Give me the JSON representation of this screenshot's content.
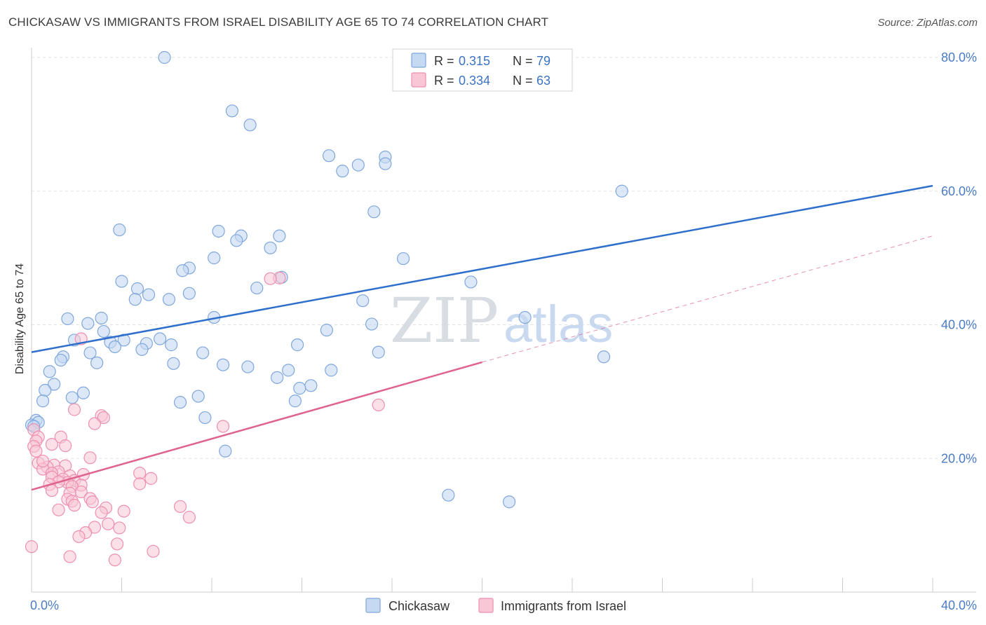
{
  "title": "CHICKASAW VS IMMIGRANTS FROM ISRAEL DISABILITY AGE 65 TO 74 CORRELATION CHART",
  "source": "Source: ZipAtlas.com",
  "watermark": {
    "zip": "ZIP",
    "atlas": "atlas"
  },
  "legend": {
    "r_label": "R =",
    "n_label": "N =",
    "entries": [
      {
        "r": "0.315",
        "n": "79"
      },
      {
        "r": "0.334",
        "n": "63"
      }
    ]
  },
  "bottom_legend": [
    "Chickasaw",
    "Immigrants from Israel"
  ],
  "colors": {
    "chickasaw_fill": "#c5d9f3",
    "chickasaw_stroke": "#7fa7dc",
    "chickasaw_line": "#2f6fcc",
    "israel_fill": "#f8c6d5",
    "israel_stroke": "#ee8fb0",
    "israel_line": "#e0628f",
    "grid": "#e2e2e2",
    "tick_label": "#4a7cc4"
  },
  "chart_data": {
    "type": "scatter",
    "title": "CHICKASAW VS IMMIGRANTS FROM ISRAEL DISABILITY AGE 65 TO 74 CORRELATION CHART",
    "xlabel": "",
    "ylabel": "Disability Age 65 to 74",
    "xlim": [
      0,
      40
    ],
    "ylim": [
      0,
      80
    ],
    "x_tick_labels": [
      "0.0%",
      "40.0%"
    ],
    "y_ticks": [
      20,
      40,
      60,
      80
    ],
    "y_tick_labels": [
      "20.0%",
      "40.0%",
      "60.0%",
      "80.0%"
    ],
    "grid": true,
    "legend_position": "top-center",
    "series": [
      {
        "name": "Chickasaw",
        "r": 0.315,
        "n": 79,
        "trend": {
          "x": [
            0,
            40
          ],
          "y": [
            35.9,
            60.8
          ],
          "style": "solid"
        },
        "points": [
          [
            5.9,
            80.0
          ],
          [
            8.9,
            72.0
          ],
          [
            9.7,
            69.9
          ],
          [
            13.2,
            65.3
          ],
          [
            15.7,
            65.1
          ],
          [
            15.7,
            64.1
          ],
          [
            13.8,
            63.0
          ],
          [
            14.5,
            63.9
          ],
          [
            26.2,
            60.0
          ],
          [
            15.2,
            56.9
          ],
          [
            3.9,
            54.2
          ],
          [
            8.3,
            54.0
          ],
          [
            9.3,
            53.3
          ],
          [
            9.1,
            52.6
          ],
          [
            11.0,
            53.3
          ],
          [
            10.6,
            51.5
          ],
          [
            8.1,
            50.0
          ],
          [
            16.5,
            49.9
          ],
          [
            7.0,
            48.5
          ],
          [
            6.7,
            48.1
          ],
          [
            11.1,
            47.1
          ],
          [
            4.0,
            46.5
          ],
          [
            19.5,
            46.4
          ],
          [
            10.0,
            45.5
          ],
          [
            4.7,
            45.4
          ],
          [
            5.2,
            44.5
          ],
          [
            6.1,
            43.8
          ],
          [
            7.0,
            44.7
          ],
          [
            14.7,
            43.6
          ],
          [
            4.6,
            43.8
          ],
          [
            1.6,
            40.9
          ],
          [
            3.1,
            41.0
          ],
          [
            21.9,
            41.1
          ],
          [
            8.1,
            41.1
          ],
          [
            2.5,
            40.2
          ],
          [
            15.1,
            40.1
          ],
          [
            3.2,
            39.0
          ],
          [
            13.1,
            39.2
          ],
          [
            4.1,
            37.7
          ],
          [
            5.7,
            37.9
          ],
          [
            1.9,
            37.7
          ],
          [
            3.5,
            37.4
          ],
          [
            5.1,
            37.2
          ],
          [
            6.2,
            37.0
          ],
          [
            3.7,
            36.7
          ],
          [
            4.9,
            36.3
          ],
          [
            11.8,
            37.0
          ],
          [
            2.6,
            35.8
          ],
          [
            7.6,
            35.8
          ],
          [
            15.4,
            35.9
          ],
          [
            25.4,
            35.2
          ],
          [
            1.4,
            35.2
          ],
          [
            1.3,
            34.7
          ],
          [
            2.9,
            34.3
          ],
          [
            6.3,
            34.2
          ],
          [
            8.5,
            34.0
          ],
          [
            9.6,
            33.7
          ],
          [
            11.4,
            33.2
          ],
          [
            13.3,
            33.2
          ],
          [
            0.8,
            33.0
          ],
          [
            10.9,
            32.1
          ],
          [
            1.0,
            31.1
          ],
          [
            12.4,
            30.9
          ],
          [
            0.6,
            30.2
          ],
          [
            11.9,
            30.5
          ],
          [
            2.3,
            29.8
          ],
          [
            7.4,
            29.3
          ],
          [
            1.8,
            29.1
          ],
          [
            0.5,
            28.6
          ],
          [
            6.6,
            28.4
          ],
          [
            11.7,
            28.6
          ],
          [
            7.7,
            26.1
          ],
          [
            0.2,
            25.7
          ],
          [
            0.0,
            25.0
          ],
          [
            0.3,
            25.4
          ],
          [
            8.6,
            21.1
          ],
          [
            18.5,
            14.5
          ],
          [
            21.2,
            13.5
          ],
          [
            0.1,
            24.8
          ]
        ]
      },
      {
        "name": "Immigrants from Israel",
        "r": 0.334,
        "n": 63,
        "trend": {
          "x": [
            0,
            20
          ],
          "y": [
            15.3,
            34.4
          ],
          "style": "solid",
          "extension": {
            "x": [
              20,
              40
            ],
            "y": [
              34.4,
              53.3
            ],
            "style": "dashed"
          }
        },
        "points": [
          [
            11.0,
            47.0
          ],
          [
            10.6,
            46.9
          ],
          [
            2.2,
            37.9
          ],
          [
            15.4,
            28.0
          ],
          [
            1.9,
            27.3
          ],
          [
            3.1,
            26.4
          ],
          [
            3.2,
            26.1
          ],
          [
            2.8,
            25.2
          ],
          [
            8.5,
            24.8
          ],
          [
            0.1,
            24.3
          ],
          [
            0.3,
            23.2
          ],
          [
            1.3,
            23.2
          ],
          [
            0.2,
            22.6
          ],
          [
            0.9,
            22.1
          ],
          [
            1.5,
            21.9
          ],
          [
            0.1,
            21.8
          ],
          [
            0.2,
            21.1
          ],
          [
            2.6,
            20.1
          ],
          [
            0.3,
            19.3
          ],
          [
            1.0,
            19.0
          ],
          [
            0.7,
            18.7
          ],
          [
            1.5,
            18.9
          ],
          [
            0.5,
            18.4
          ],
          [
            1.2,
            18.0
          ],
          [
            0.9,
            17.8
          ],
          [
            2.3,
            17.6
          ],
          [
            4.8,
            17.8
          ],
          [
            1.7,
            17.4
          ],
          [
            0.9,
            17.2
          ],
          [
            1.4,
            16.9
          ],
          [
            5.3,
            17.0
          ],
          [
            1.9,
            16.7
          ],
          [
            1.6,
            16.4
          ],
          [
            1.2,
            16.5
          ],
          [
            0.8,
            16.1
          ],
          [
            2.2,
            16.0
          ],
          [
            4.8,
            16.2
          ],
          [
            1.8,
            15.8
          ],
          [
            0.9,
            15.2
          ],
          [
            2.2,
            15.0
          ],
          [
            1.7,
            14.8
          ],
          [
            2.6,
            14.0
          ],
          [
            1.6,
            13.9
          ],
          [
            1.8,
            13.6
          ],
          [
            2.7,
            13.5
          ],
          [
            1.9,
            13.0
          ],
          [
            6.6,
            12.8
          ],
          [
            3.3,
            12.6
          ],
          [
            1.2,
            12.3
          ],
          [
            4.1,
            12.1
          ],
          [
            3.1,
            11.9
          ],
          [
            7.0,
            11.2
          ],
          [
            3.4,
            10.2
          ],
          [
            2.8,
            9.7
          ],
          [
            3.9,
            9.6
          ],
          [
            2.4,
            8.9
          ],
          [
            2.1,
            8.3
          ],
          [
            3.8,
            7.2
          ],
          [
            0.0,
            6.8
          ],
          [
            5.4,
            6.1
          ],
          [
            1.7,
            5.3
          ],
          [
            3.7,
            4.8
          ],
          [
            0.5,
            19.6
          ]
        ]
      }
    ]
  }
}
